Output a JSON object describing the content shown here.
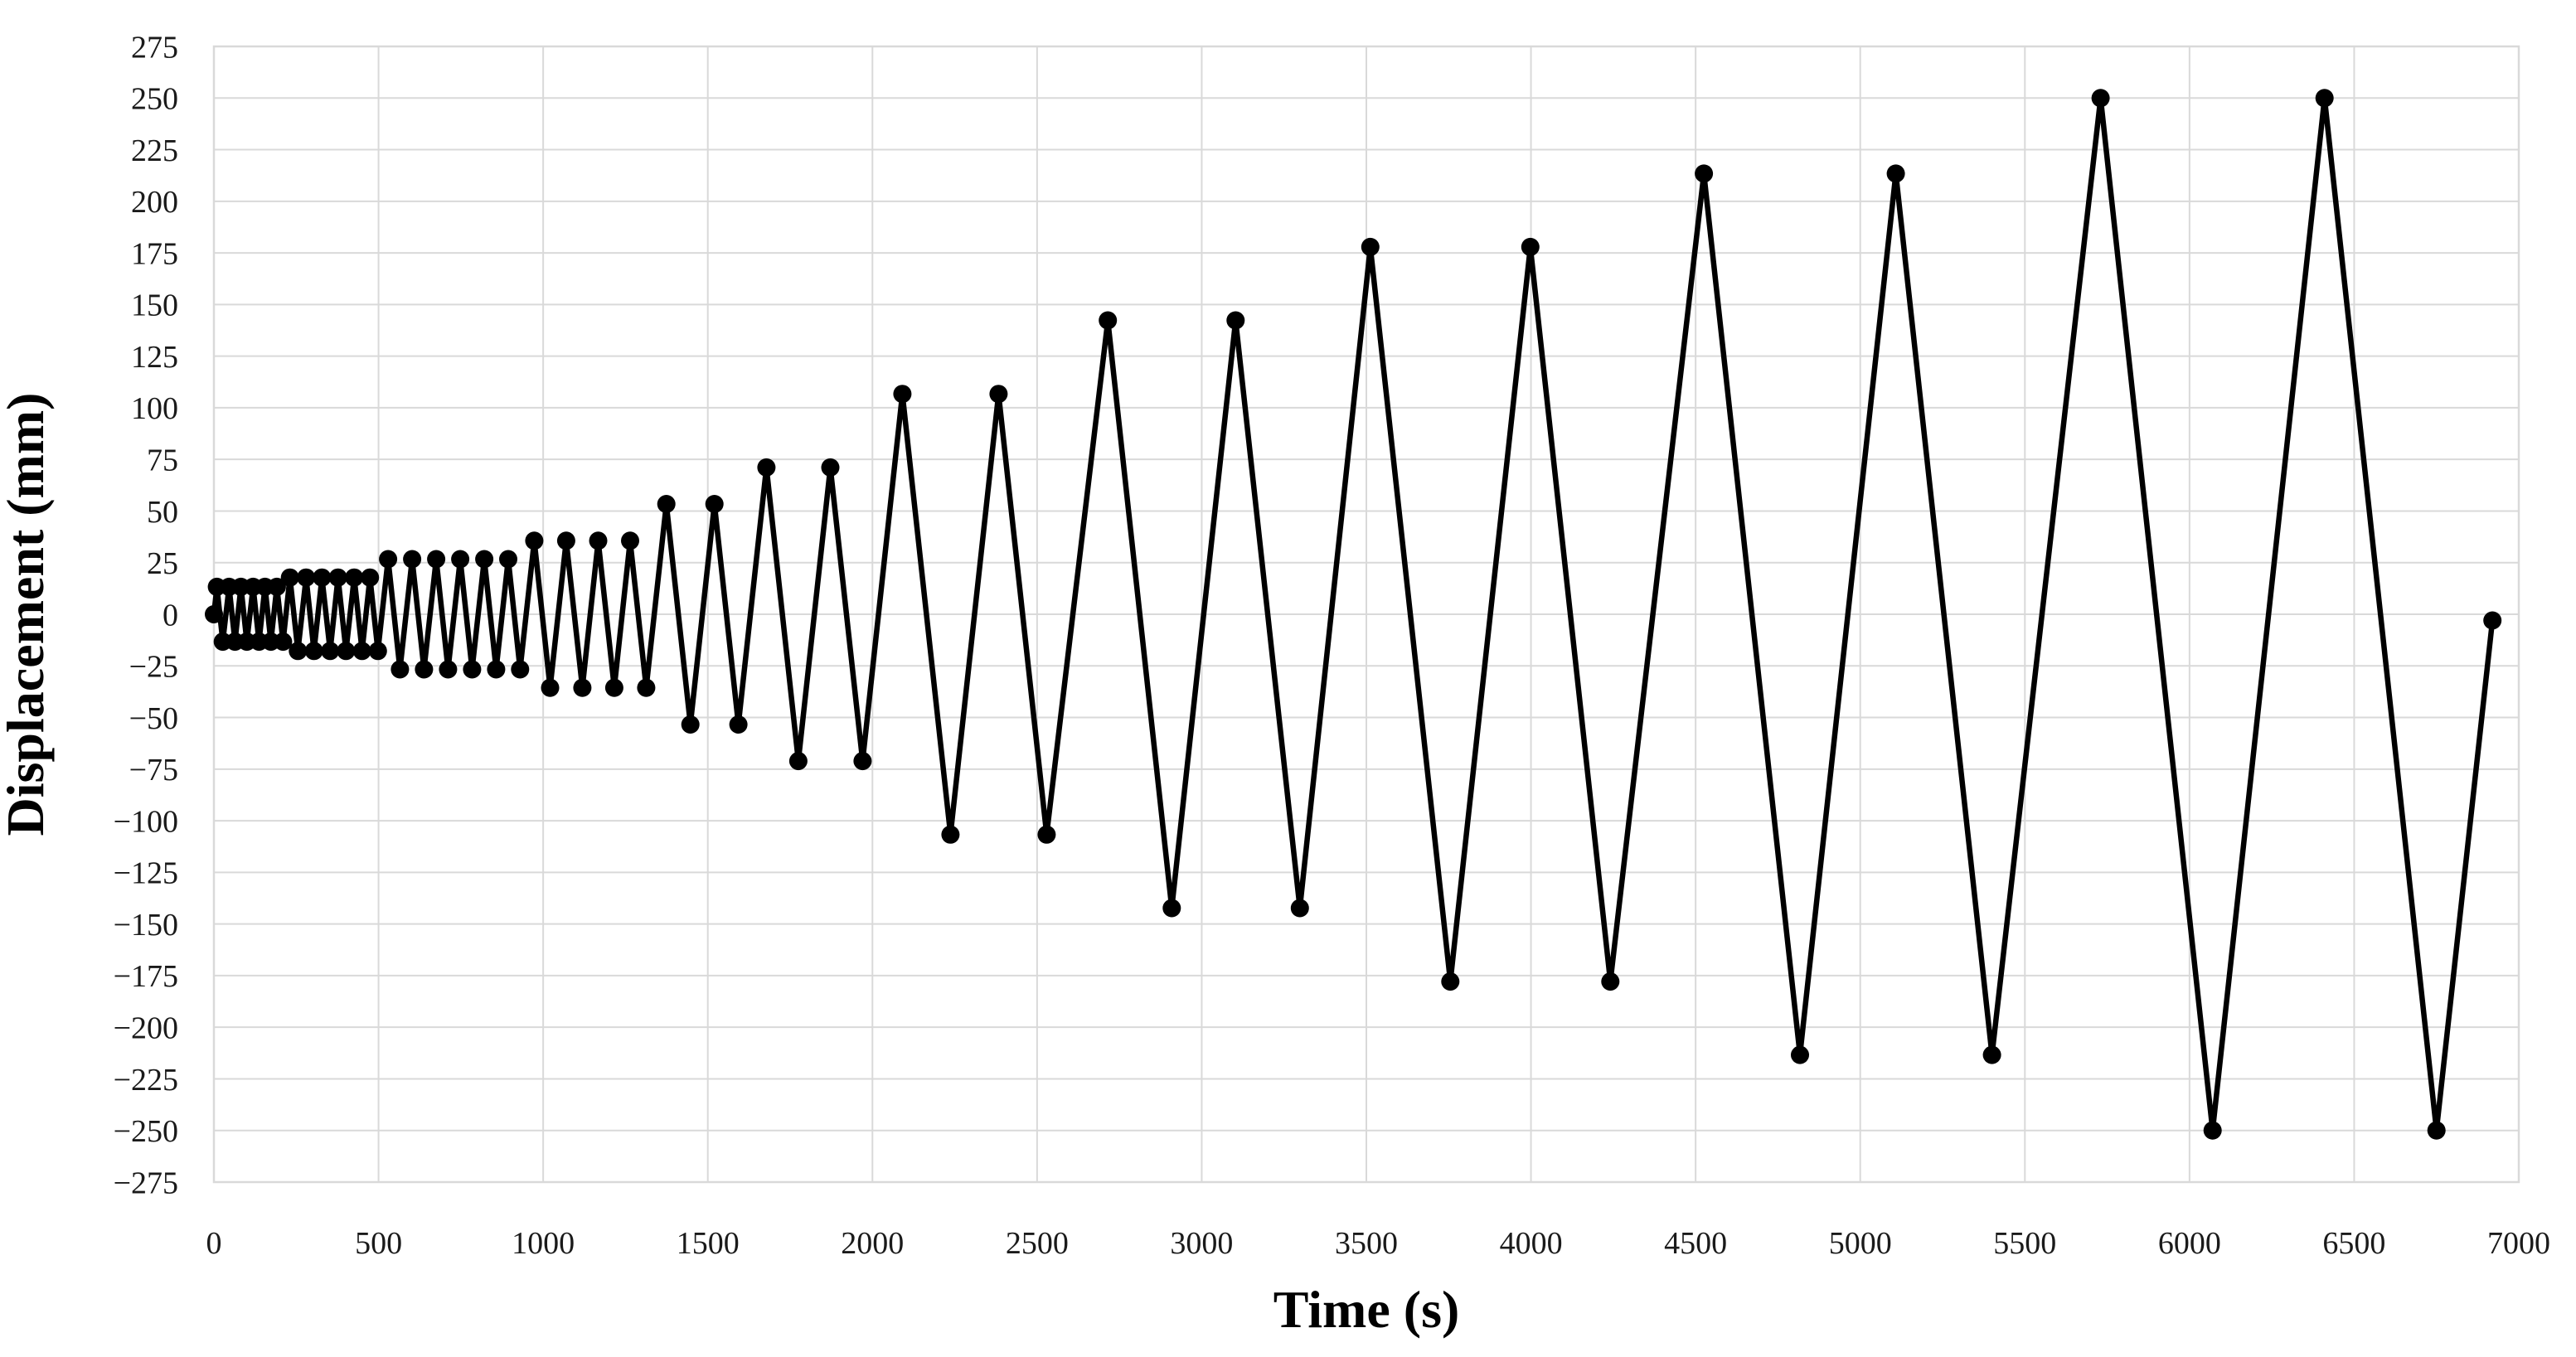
{
  "chart_data": {
    "type": "line",
    "title": "",
    "xlabel": "Time (s)",
    "ylabel": "Displacement (mm)",
    "xlim": [
      0,
      7000
    ],
    "ylim": [
      -275,
      275
    ],
    "x_ticks": [
      0,
      500,
      1000,
      1500,
      2000,
      2500,
      3000,
      3500,
      4000,
      4500,
      5000,
      5500,
      6000,
      6500,
      7000
    ],
    "y_ticks": [
      275,
      250,
      225,
      200,
      175,
      150,
      125,
      100,
      75,
      50,
      25,
      0,
      -25,
      -50,
      -75,
      -100,
      -125,
      -150,
      -175,
      -200,
      -225,
      -250,
      -275
    ],
    "grid": true,
    "legend_position": "none",
    "colors": {
      "line": "#000000",
      "marker": "#000000",
      "gridline": "#d9d9d9",
      "plot_border": "#d9d9d9",
      "tick_text": "#1a1a1a",
      "background": "#ffffff"
    },
    "marker_style": "filled-circle",
    "series": [
      {
        "name": "Displacement",
        "points": [
          [
            0,
            0
          ],
          [
            9,
            13.3
          ],
          [
            27,
            -13.3
          ],
          [
            46,
            13.3
          ],
          [
            64,
            -13.3
          ],
          [
            82,
            13.3
          ],
          [
            100,
            -13.3
          ],
          [
            119,
            13.3
          ],
          [
            137,
            -13.3
          ],
          [
            155,
            13.3
          ],
          [
            173,
            -13.3
          ],
          [
            191,
            13.3
          ],
          [
            210,
            -13.3
          ],
          [
            231,
            17.8
          ],
          [
            255,
            -17.8
          ],
          [
            280,
            17.8
          ],
          [
            304,
            -17.8
          ],
          [
            328,
            17.8
          ],
          [
            353,
            -17.8
          ],
          [
            377,
            17.8
          ],
          [
            401,
            -17.8
          ],
          [
            426,
            17.8
          ],
          [
            450,
            -17.8
          ],
          [
            474,
            17.8
          ],
          [
            498,
            -17.8
          ],
          [
            529,
            26.7
          ],
          [
            565,
            -26.7
          ],
          [
            602,
            26.7
          ],
          [
            638,
            -26.7
          ],
          [
            675,
            26.7
          ],
          [
            711,
            -26.7
          ],
          [
            748,
            26.7
          ],
          [
            784,
            -26.7
          ],
          [
            821,
            26.7
          ],
          [
            857,
            -26.7
          ],
          [
            894,
            26.7
          ],
          [
            930,
            -26.7
          ],
          [
            973,
            35.6
          ],
          [
            1021,
            -35.6
          ],
          [
            1070,
            35.6
          ],
          [
            1119,
            -35.6
          ],
          [
            1167,
            35.6
          ],
          [
            1216,
            -35.6
          ],
          [
            1264,
            35.6
          ],
          [
            1313,
            -35.6
          ],
          [
            1374,
            53.4
          ],
          [
            1447,
            -53.4
          ],
          [
            1520,
            53.4
          ],
          [
            1593,
            -53.4
          ],
          [
            1678,
            71.1
          ],
          [
            1775,
            -71.1
          ],
          [
            1872,
            71.1
          ],
          [
            1970,
            -71.1
          ],
          [
            2091,
            106.7
          ],
          [
            2237,
            -106.7
          ],
          [
            2383,
            106.7
          ],
          [
            2529,
            -106.7
          ],
          [
            2715,
            142.3
          ],
          [
            2909,
            -142.3
          ],
          [
            3103,
            142.3
          ],
          [
            3298,
            -142.3
          ],
          [
            3512,
            177.9
          ],
          [
            3755,
            -177.9
          ],
          [
            3998,
            177.9
          ],
          [
            4241,
            -177.9
          ],
          [
            4525,
            213.4
          ],
          [
            4817,
            -213.4
          ],
          [
            5108,
            213.4
          ],
          [
            5400,
            -213.4
          ],
          [
            5730,
            250
          ],
          [
            6070,
            -250
          ],
          [
            6410,
            250
          ],
          [
            6750,
            -250
          ],
          [
            6920,
            -3
          ]
        ]
      }
    ]
  }
}
